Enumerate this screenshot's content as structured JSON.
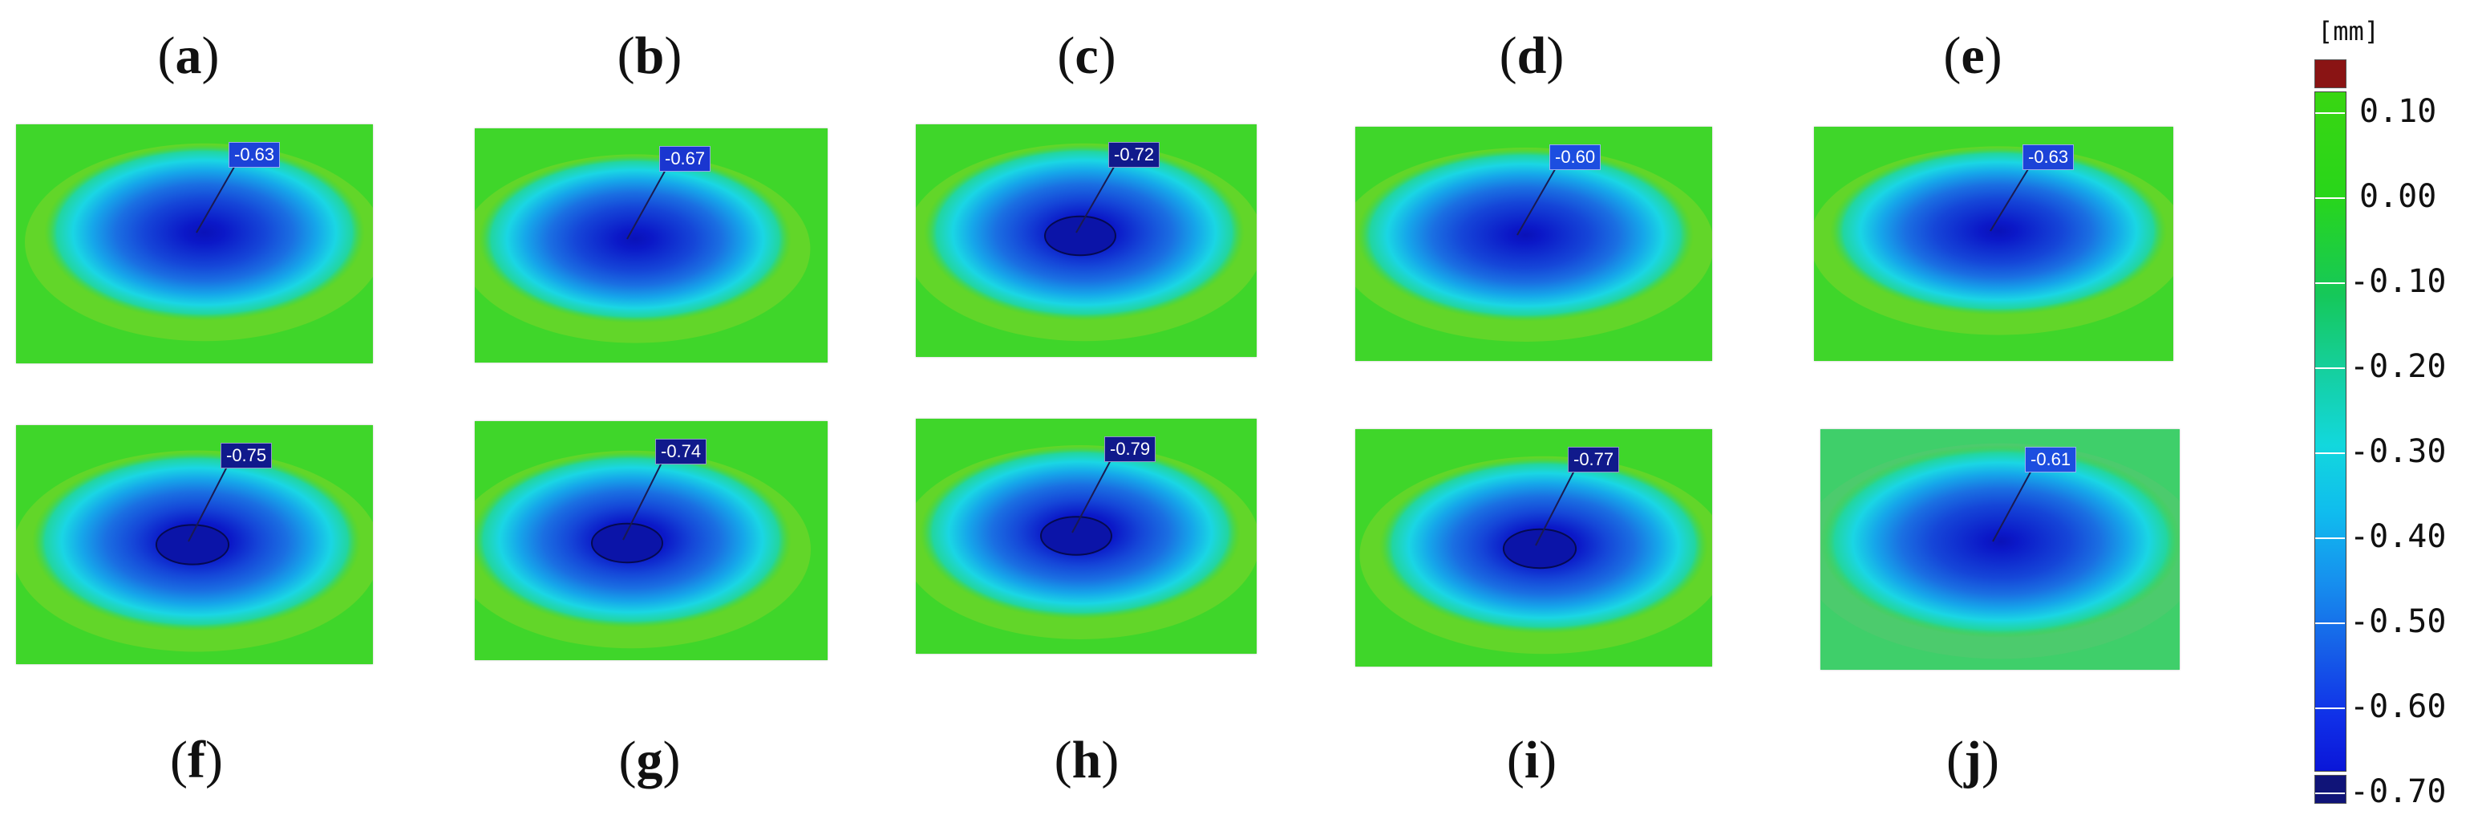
{
  "colors": {
    "background_green": "#3fd62a",
    "deep_blue": "#0b14a8",
    "overflow_high": "#8a1414",
    "overflow_low": "#101478"
  },
  "panels": [
    {
      "label": "a",
      "value": "-0.63",
      "callout_color": "#1c43d8"
    },
    {
      "label": "b",
      "value": "-0.67",
      "callout_color": "#1a36d0"
    },
    {
      "label": "c",
      "value": "-0.72",
      "callout_color": "#101a8c"
    },
    {
      "label": "d",
      "value": "-0.60",
      "callout_color": "#1c4ee0"
    },
    {
      "label": "e",
      "value": "-0.63",
      "callout_color": "#1c43d8"
    },
    {
      "label": "f",
      "value": "-0.75",
      "callout_color": "#101a8c"
    },
    {
      "label": "g",
      "value": "-0.74",
      "callout_color": "#101a8c"
    },
    {
      "label": "h",
      "value": "-0.79",
      "callout_color": "#101a8c"
    },
    {
      "label": "i",
      "value": "-0.77",
      "callout_color": "#101a8c"
    },
    {
      "label": "j",
      "value": "-0.61",
      "callout_color": "#1c4ee0"
    }
  ],
  "scale": {
    "unit": "[mm]",
    "ticks": [
      "0.10",
      "0.00",
      "-0.10",
      "-0.20",
      "-0.30",
      "-0.40",
      "-0.50",
      "-0.60",
      "-0.70"
    ]
  }
}
